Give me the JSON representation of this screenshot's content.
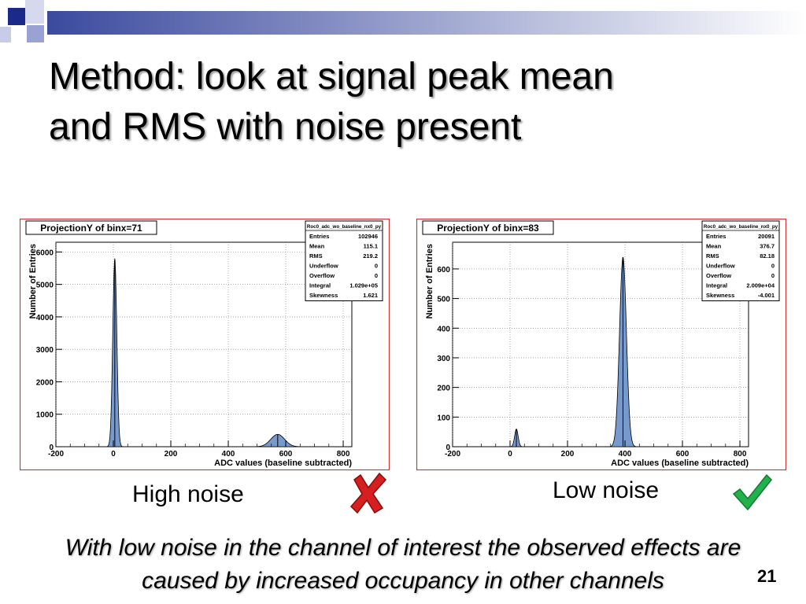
{
  "slide": {
    "title_lines": [
      "Method: look at signal peak mean",
      "and RMS with noise present"
    ],
    "caption_left": "High noise",
    "caption_right": "Low noise",
    "conclusion_lines": [
      "With low noise in the channel of interest the observed effects are",
      "caused by increased occupancy in other channels"
    ],
    "page_number": "21",
    "icons": {
      "left_mark": "red-cross-icon",
      "right_mark": "green-check-icon"
    }
  },
  "colors": {
    "fill": "#7799cc",
    "frame": "#cc3333",
    "cross": "#d42020",
    "check": "#22b14c"
  },
  "chart_data": [
    {
      "type": "histogram",
      "title": "ProjectionY of binx=71",
      "xlabel": "ADC values (baseline subtracted)",
      "ylabel": "Number of Entries",
      "xlim": [
        -200,
        830
      ],
      "ylim": [
        0,
        6300
      ],
      "xticks": [
        -200,
        0,
        200,
        400,
        600,
        800
      ],
      "yticks": [
        0,
        1000,
        2000,
        3000,
        4000,
        5000,
        6000
      ],
      "grid": true,
      "stats": {
        "name": "Roc0_adc_wo_baseline_nx0_py",
        "rows": [
          {
            "label": "Entries",
            "value": "102946"
          },
          {
            "label": "Mean",
            "value": "115.1"
          },
          {
            "label": "RMS",
            "value": "219.2"
          },
          {
            "label": "Underflow",
            "value": "0"
          },
          {
            "label": "Overflow",
            "value": "0"
          },
          {
            "label": "Integral",
            "value": "1.029e+05"
          },
          {
            "label": "Skewness",
            "value": "1.621"
          }
        ]
      },
      "peaks": [
        {
          "center": 5,
          "sigma": 7,
          "height": 5800
        },
        {
          "center": 572,
          "sigma": 24,
          "height": 380
        }
      ]
    },
    {
      "type": "histogram",
      "title": "ProjectionY of binx=83",
      "xlabel": "ADC values (baseline subtracted)",
      "ylabel": "Number of Entries",
      "xlim": [
        -200,
        830
      ],
      "ylim": [
        0,
        690
      ],
      "xticks": [
        -200,
        0,
        200,
        400,
        600,
        800
      ],
      "yticks": [
        0,
        100,
        200,
        300,
        400,
        500,
        600
      ],
      "grid": true,
      "stats": {
        "name": "Roc0_adc_wo_baseline_nx0_py",
        "rows": [
          {
            "label": "Entries",
            "value": "20091"
          },
          {
            "label": "Mean",
            "value": "376.7"
          },
          {
            "label": "RMS",
            "value": "82.18"
          },
          {
            "label": "Underflow",
            "value": "0"
          },
          {
            "label": "Overflow",
            "value": "0"
          },
          {
            "label": "Integral",
            "value": "2.009e+04"
          },
          {
            "label": "Skewness",
            "value": "-4.001"
          }
        ]
      },
      "peaks": [
        {
          "center": 22,
          "sigma": 6,
          "height": 60
        },
        {
          "center": 393,
          "sigma": 12,
          "height": 640
        }
      ]
    }
  ]
}
